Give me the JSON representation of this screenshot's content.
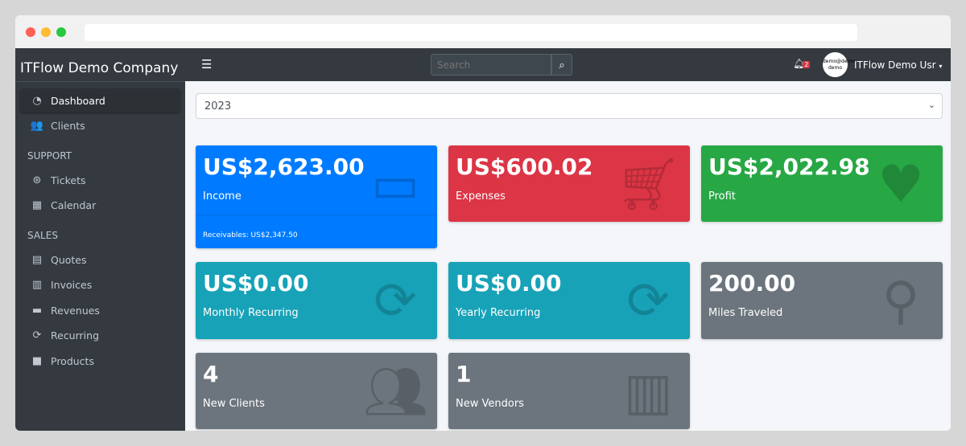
{
  "sidebar": {
    "brand": "ITFlow Demo Company",
    "items": [
      {
        "label": "Dashboard",
        "icon": "tachometer-icon"
      },
      {
        "label": "Clients",
        "icon": "users-icon"
      }
    ],
    "support_header": "SUPPORT",
    "support": [
      {
        "label": "Tickets",
        "icon": "life-ring-icon"
      },
      {
        "label": "Calendar",
        "icon": "calendar-icon"
      }
    ],
    "sales_header": "SALES",
    "sales": [
      {
        "label": "Quotes",
        "icon": "file-icon"
      },
      {
        "label": "Invoices",
        "icon": "file-invoice-icon"
      },
      {
        "label": "Revenues",
        "icon": "credit-card-icon"
      },
      {
        "label": "Recurring",
        "icon": "sync-icon"
      },
      {
        "label": "Products",
        "icon": "box-icon"
      }
    ]
  },
  "navbar": {
    "search_placeholder": "Search",
    "notifications": "2",
    "avatar_text": "demo@demo demo",
    "user": "ITFlow Demo Usr"
  },
  "year_select": "2023",
  "cards": [
    {
      "value": "US$2,623.00",
      "label": "Income",
      "footer": "Receivables: US$2,347.50",
      "color": "#007bff",
      "icon": "credit-card-icon"
    },
    {
      "value": "US$600.02",
      "label": "Expenses",
      "color": "#dc3545",
      "icon": "shopping-cart-icon"
    },
    {
      "value": "US$2,022.98",
      "label": "Profit",
      "color": "#28a745",
      "icon": "heart-icon"
    },
    {
      "value": "US$0.00",
      "label": "Monthly Recurring",
      "color": "#17a2b8",
      "icon": "sync-icon"
    },
    {
      "value": "US$0.00",
      "label": "Yearly Recurring",
      "color": "#17a2b8",
      "icon": "sync-icon"
    },
    {
      "value": "200.00",
      "label": "Miles Traveled",
      "color": "#6c757d",
      "icon": "route-icon"
    },
    {
      "value": "4",
      "label": "New Clients",
      "color": "#6c757d",
      "icon": "users-icon"
    },
    {
      "value": "1",
      "label": "New Vendors",
      "color": "#6c757d",
      "icon": "building-icon"
    }
  ]
}
